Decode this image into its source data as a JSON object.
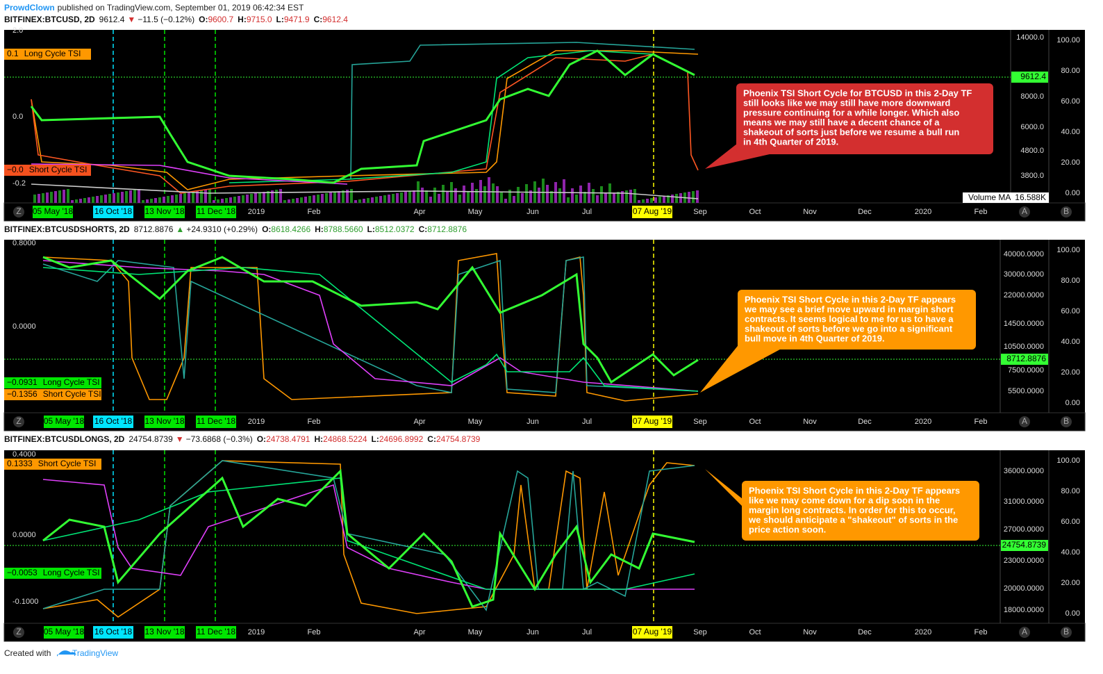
{
  "header": {
    "author": "ProwdClown",
    "published": "published on TradingView.com, September 01, 2019 06:42:34 EST"
  },
  "panels": [
    {
      "symbol": "BITFINEX:BTCUSD, 2D",
      "last": "9612.4",
      "direction": "down",
      "change": "−11.5 (−0.12%)",
      "ohlc": [
        {
          "label": "O:",
          "value": "9600.7"
        },
        {
          "label": "H:",
          "value": "9715.0"
        },
        {
          "label": "L:",
          "value": "9471.9"
        },
        {
          "label": "C:",
          "value": "9612.4"
        }
      ],
      "left_axis": [
        "2.0",
        "0.0",
        "-0.2"
      ],
      "indicators": [
        {
          "value": "0.1",
          "name": "Long Cycle TSI",
          "color": "#ff9800"
        },
        {
          "value": "−0.0",
          "name": "Short Cycle TSI",
          "color": "#f4511e"
        }
      ],
      "price_axis": [
        "14000.0",
        "8000.0",
        "6000.0",
        "4800.0",
        "3800.0"
      ],
      "price_tag": "9612.4",
      "tsi_axis": [
        "100.00",
        "80.00",
        "60.00",
        "40.00",
        "20.00",
        "0.00"
      ],
      "volume_ma": {
        "label": "Volume MA",
        "value": "16.588K"
      },
      "note": [
        "Phoenix TSI Short Cycle for BTCUSD in this 2-Day TF",
        "still looks like we may still have more downward",
        "pressure continuing for a while longer.  Which also",
        "means we may still have a decent chance of a",
        "shakeout of sorts just before we resume a bull run",
        "in 4th Quarter of 2019."
      ]
    },
    {
      "symbol": "BITFINEX:BTCUSDSHORTS, 2D",
      "last": "8712.8876",
      "direction": "up",
      "change": "+24.9310 (+0.29%)",
      "ohlc": [
        {
          "label": "O:",
          "value": "8618.4266"
        },
        {
          "label": "H:",
          "value": "8788.5660"
        },
        {
          "label": "L:",
          "value": "8512.0372"
        },
        {
          "label": "C:",
          "value": "8712.8876"
        }
      ],
      "left_axis": [
        "0.8000",
        "0.0000"
      ],
      "indicators": [
        {
          "value": "−0.0931",
          "name": "Long Cycle TSI",
          "color": "#00e600"
        },
        {
          "value": "−0.1356",
          "name": "Short Cycle TSI",
          "color": "#ff9800"
        }
      ],
      "price_axis": [
        "40000.0000",
        "30000.0000",
        "22000.0000",
        "14500.0000",
        "10500.0000",
        "7500.0000",
        "5500.0000"
      ],
      "price_tag": "8712.8876",
      "tsi_axis": [
        "100.00",
        "80.00",
        "60.00",
        "40.00",
        "20.00",
        "0.00"
      ],
      "note": [
        "Phoenix TSI Short Cycle in this 2-Day TF appears",
        "we may see a brief move upward in margin short",
        "contracts.  It seems logical to me for us to have a",
        "shakeout of sorts before we go into a significant",
        "bull move in 4th Quarter of 2019."
      ]
    },
    {
      "symbol": "BITFINEX:BTCUSDLONGS, 2D",
      "last": "24754.8739",
      "direction": "down",
      "change": "−73.6868 (−0.3%)",
      "ohlc": [
        {
          "label": "O:",
          "value": "24738.4791"
        },
        {
          "label": "H:",
          "value": "24868.5224"
        },
        {
          "label": "L:",
          "value": "24696.8992"
        },
        {
          "label": "C:",
          "value": "24754.8739"
        }
      ],
      "left_axis": [
        "0.4000",
        "0.0000",
        "-0.1000"
      ],
      "indicators": [
        {
          "value": "0.1333",
          "name": "Short Cycle TSI",
          "color": "#ff9800"
        },
        {
          "value": "−0.0053",
          "name": "Long Cycle TSI",
          "color": "#00e600"
        }
      ],
      "price_axis": [
        "36000.0000",
        "31000.0000",
        "27000.0000",
        "23000.0000",
        "20000.0000",
        "18000.0000"
      ],
      "price_tag": "24754.8739",
      "tsi_axis": [
        "100.00",
        "80.00",
        "60.00",
        "40.00",
        "20.00",
        "0.00"
      ],
      "note": [
        "Phoenix TSI Short Cycle in this 2-Day TF appears",
        "like we may come down for a dip soon in the",
        "margin long contracts.  In order for this to occur,",
        "we should anticipate a \"shakeout\" of sorts in the",
        "price action soon."
      ]
    }
  ],
  "time_axis": [
    "2019",
    "Feb",
    "Apr",
    "May",
    "Jun",
    "Jul",
    "Sep",
    "Oct",
    "Nov",
    "Dec",
    "2020",
    "Feb"
  ],
  "date_tags": [
    "05 May '18",
    "16 Oct '18",
    "13 Nov '18",
    "11 Dec '18",
    "07 Aug '19"
  ],
  "buttons": [
    "Z",
    "A",
    "B"
  ],
  "footer": {
    "text": "Created with",
    "brand": "TradingView"
  }
}
